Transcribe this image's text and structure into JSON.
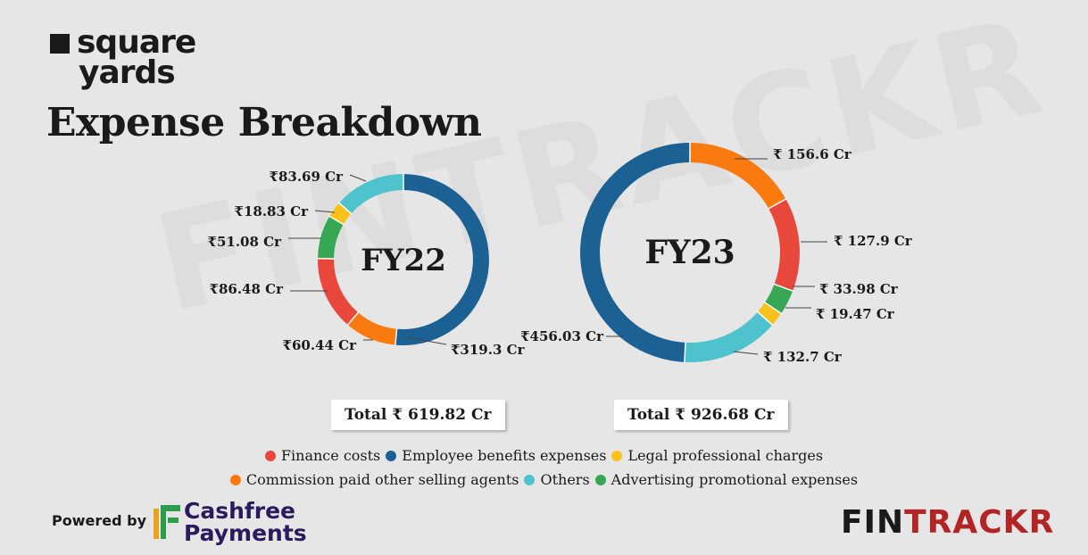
{
  "brand": {
    "line1": "square",
    "line2": "yards"
  },
  "title": "Expense Breakdown",
  "watermark": "FINTRACKR",
  "colors": {
    "Finance costs": "#e8473c",
    "Employee benefits expenses": "#1b6193",
    "Legal professional charges": "#f9c21a",
    "Commission paid other selling agents": "#fb7a10",
    "Others": "#4ec3cd",
    "Advertising promotional expenses": "#36a853"
  },
  "chart_data": [
    {
      "type": "pie",
      "title": "FY22",
      "total_label": "Total ₹ 619.82 Cr",
      "slices": [
        {
          "name": "Employee benefits expenses",
          "value": 319.3,
          "label": "₹319.3 Cr"
        },
        {
          "name": "Commission paid other selling agents",
          "value": 60.44,
          "label": "₹60.44 Cr"
        },
        {
          "name": "Finance costs",
          "value": 86.48,
          "label": "₹86.48 Cr"
        },
        {
          "name": "Advertising promotional expenses",
          "value": 51.08,
          "label": "₹51.08 Cr"
        },
        {
          "name": "Legal professional charges",
          "value": 18.83,
          "label": "₹18.83 Cr"
        },
        {
          "name": "Others",
          "value": 83.69,
          "label": "₹83.69 Cr"
        }
      ]
    },
    {
      "type": "pie",
      "title": "FY23",
      "total_label": "Total ₹ 926.68 Cr",
      "slices": [
        {
          "name": "Commission paid other selling agents",
          "value": 156.6,
          "label": "₹ 156.6 Cr"
        },
        {
          "name": "Finance costs",
          "value": 127.9,
          "label": "₹ 127.9 Cr"
        },
        {
          "name": "Advertising promotional expenses",
          "value": 33.98,
          "label": "₹ 33.98 Cr"
        },
        {
          "name": "Legal professional charges",
          "value": 19.47,
          "label": "₹ 19.47 Cr"
        },
        {
          "name": "Others",
          "value": 132.7,
          "label": "₹ 132.7 Cr"
        },
        {
          "name": "Employee benefits expenses",
          "value": 456.03,
          "label": "₹456.03 Cr"
        }
      ]
    }
  ],
  "legend": {
    "row1": [
      "Finance costs",
      "Employee benefits expenses",
      "Legal professional charges"
    ],
    "row2": [
      "Commission paid other selling agents",
      "Others",
      "Advertising promotional expenses"
    ]
  },
  "footer": {
    "powered_by": "Powered by",
    "cashfree_line1": "Cashfree",
    "cashfree_line2": "Payments",
    "fintrackr_a": "FIN",
    "fintrackr_b": "TRACKR"
  }
}
